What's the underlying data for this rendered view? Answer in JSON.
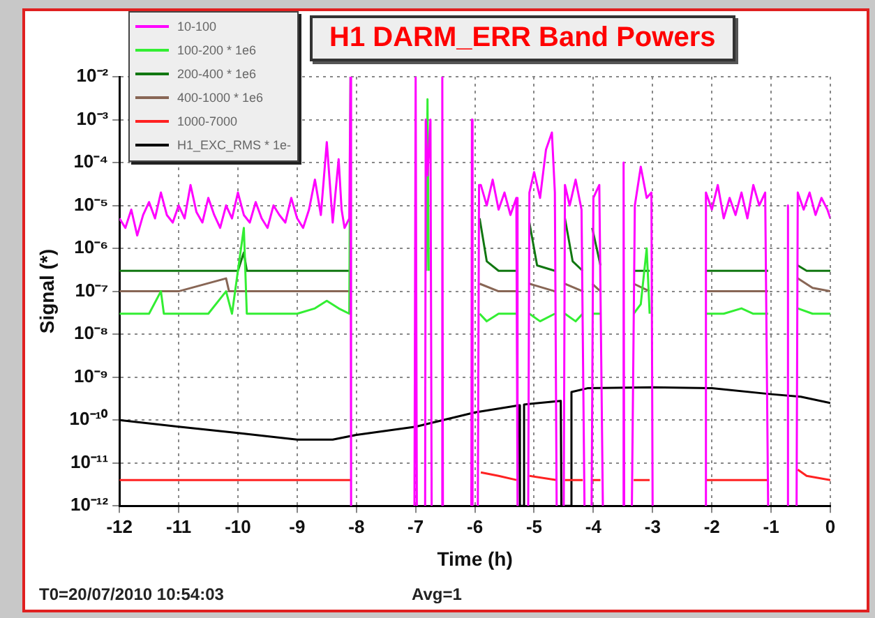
{
  "chart_data": {
    "type": "line",
    "title": "H1 DARM_ERR Band Powers",
    "xlabel": "Time (h)",
    "ylabel": "Signal (*)",
    "annotations": [
      "T0=20/07/2010 10:54:03",
      "Avg=1"
    ],
    "log": "y",
    "grid": true,
    "legend": "top left",
    "marker": "none",
    "line_style": "solid",
    "xlim": [
      -12,
      0
    ],
    "xticks": [
      -12,
      -11,
      -10,
      -9,
      -8,
      -7,
      -6,
      -5,
      -4,
      -3,
      -2,
      -1,
      0
    ],
    "ylim": [
      1e-12,
      0.01
    ],
    "yticks": [
      {
        "value": 1e-12,
        "label": "10⁻¹²"
      },
      {
        "value": 1e-11,
        "label": "10⁻¹¹"
      },
      {
        "value": 1e-10,
        "label": "10⁻¹⁰"
      },
      {
        "value": 1e-09,
        "label": "10⁻⁹"
      },
      {
        "value": 1e-08,
        "label": "10⁻⁸"
      },
      {
        "value": 1e-07,
        "label": "10⁻⁷"
      },
      {
        "value": 1e-06,
        "label": "10⁻⁶"
      },
      {
        "value": 1e-05,
        "label": "10⁻⁵"
      },
      {
        "value": 0.0001,
        "label": "10⁻⁴"
      },
      {
        "value": 0.001,
        "label": "10⁻³"
      },
      {
        "value": 0.01,
        "label": "10⁻²"
      }
    ],
    "series": [
      {
        "name": "10-100",
        "color": "#ff00ff",
        "x": [
          -12,
          -11.9,
          -11.8,
          -11.7,
          -11.6,
          -11.5,
          -11.4,
          -11.3,
          -11.2,
          -11.1,
          -11,
          -10.9,
          -10.8,
          -10.7,
          -10.6,
          -10.5,
          -10.4,
          -10.3,
          -10.2,
          -10.1,
          -10,
          -9.9,
          -9.8,
          -9.7,
          -9.6,
          -9.5,
          -9.4,
          -9.3,
          -9.2,
          -9.1,
          -9,
          -8.9,
          -8.8,
          -8.7,
          -8.6,
          -8.5,
          -8.4,
          -8.3,
          -8.25,
          -8.2,
          -8.12,
          -8.1,
          -8.09,
          -7.5,
          -7.02,
          -7,
          -6.98,
          -6.9,
          -6.84,
          -6.83,
          -6.8,
          -6.75,
          -6.73,
          -6.6,
          -6.56,
          -6.55,
          -6.54,
          -6.3,
          -6.06,
          -6.05,
          -6.04,
          -6,
          -5.95,
          -5.93,
          -5.9,
          -5.8,
          -5.7,
          -5.6,
          -5.5,
          -5.4,
          -5.3,
          -5.28,
          -5.2,
          -5.1,
          -5.08,
          -5,
          -4.9,
          -4.8,
          -4.7,
          -4.65,
          -4.62,
          -4.56,
          -4.5,
          -4.48,
          -4.4,
          -4.3,
          -4.2,
          -4.15,
          -4.1,
          -4.03,
          -4,
          -3.9,
          -3.84,
          -3.7,
          -3.5,
          -3.49,
          -3.48,
          -3.4,
          -3.35,
          -3.3,
          -3.2,
          -3.1,
          -3.02,
          -3,
          -2.5,
          -2.12,
          -2.1,
          -2,
          -1.9,
          -1.8,
          -1.7,
          -1.6,
          -1.5,
          -1.4,
          -1.3,
          -1.2,
          -1.1,
          -1.05,
          -0.9,
          -0.73,
          -0.72,
          -0.71,
          -0.65,
          -0.57,
          -0.55,
          -0.45,
          -0.35,
          -0.25,
          -0.15,
          -0.05,
          0
        ],
        "values": [
          5e-06,
          3e-06,
          8e-06,
          2e-06,
          6e-06,
          1.2e-05,
          5e-06,
          2e-05,
          6e-06,
          4e-06,
          1e-05,
          5e-06,
          3e-05,
          7e-06,
          4e-06,
          1.5e-05,
          6e-06,
          3e-06,
          1e-05,
          5e-06,
          2e-05,
          6e-06,
          4e-06,
          1.2e-05,
          5e-06,
          3e-06,
          1e-05,
          6e-06,
          4e-06,
          1.5e-05,
          5e-06,
          3e-06,
          8e-06,
          4e-05,
          6e-06,
          0.0003,
          4e-06,
          0.00012,
          8e-06,
          3e-06,
          5e-06,
          0.01,
          1e-12,
          null,
          1e-12,
          0.01,
          1e-12,
          null,
          1e-12,
          0.001,
          5e-05,
          0.001,
          1e-12,
          null,
          1e-12,
          0.01,
          1e-12,
          null,
          1e-12,
          0.001,
          1e-12,
          null,
          1e-12,
          3e-05,
          3e-05,
          1e-05,
          4e-05,
          8e-06,
          2e-05,
          6e-06,
          1.5e-05,
          1e-12,
          null,
          1e-12,
          2e-05,
          6e-05,
          1.5e-05,
          0.0002,
          0.0005,
          2e-05,
          1e-12,
          null,
          1e-12,
          3e-05,
          1e-05,
          4e-05,
          8e-06,
          1e-12,
          null,
          1e-12,
          1.5e-05,
          3e-05,
          1e-12,
          null,
          1e-12,
          0.0001,
          1e-12,
          null,
          1e-12,
          1e-05,
          8e-05,
          1.5e-05,
          2e-05,
          1e-12,
          null,
          1e-12,
          2e-05,
          8e-06,
          3e-05,
          5e-06,
          1.5e-05,
          6e-06,
          2e-05,
          5e-06,
          3e-05,
          1e-05,
          2e-05,
          1e-12,
          null,
          1e-12,
          1e-05,
          1e-12,
          null,
          1e-12,
          2e-05,
          8e-06,
          2e-05,
          6e-06,
          1.5e-05,
          8e-06,
          5e-06
        ]
      },
      {
        "name": "100-200 * 1e6",
        "color": "#33ee33",
        "x": [
          -12,
          -11.5,
          -11.3,
          -11.25,
          -11,
          -10.5,
          -10.2,
          -10.1,
          -9.9,
          -9.85,
          -9.8,
          -9.5,
          -9,
          -8.7,
          -8.5,
          -8.3,
          -8.12,
          -8.1,
          -8.09,
          -7.5,
          -6.82,
          -6.8,
          -6.78,
          -6.5,
          -5.92,
          -5.8,
          -5.6,
          -5.3,
          -5.2,
          -5.08,
          -4.9,
          -4.65,
          -4.55,
          -4.48,
          -4.3,
          -4.18,
          -4.1,
          -4.02,
          -3.88,
          -3.8,
          -3.32,
          -3.2,
          -3.1,
          -3.05,
          -2.5,
          -2.1,
          -1.8,
          -1.5,
          -1.3,
          -1.05,
          -0.9,
          -0.55,
          -0.3,
          0
        ],
        "values": [
          3e-08,
          3e-08,
          1e-07,
          3e-08,
          3e-08,
          3e-08,
          1e-07,
          3e-08,
          3e-06,
          3e-08,
          3e-08,
          3e-08,
          3e-08,
          4e-08,
          6e-08,
          4e-08,
          3e-08,
          0.01,
          null,
          null,
          3e-07,
          0.003,
          3e-07,
          null,
          3e-08,
          2e-08,
          3e-08,
          3e-08,
          null,
          3e-08,
          2e-08,
          3e-08,
          null,
          3e-08,
          2e-08,
          3e-08,
          null,
          3e-08,
          3e-08,
          null,
          3e-08,
          5e-08,
          1e-06,
          3e-08,
          null,
          3e-08,
          3e-08,
          4e-08,
          3e-08,
          3e-08,
          null,
          4e-08,
          3e-08,
          3e-08
        ]
      },
      {
        "name": "200-400 * 1e6",
        "color": "#117711",
        "x": [
          -12,
          -10,
          -9.9,
          -9.85,
          -9,
          -8.1,
          -7.5,
          -5.92,
          -5.8,
          -5.6,
          -5.3,
          -5.2,
          -5.08,
          -4.95,
          -4.65,
          -4.55,
          -4.48,
          -4.35,
          -4.18,
          -4.1,
          -4.02,
          -3.88,
          -3.8,
          -3.32,
          -3.05,
          -2.5,
          -2.1,
          -1.05,
          -0.9,
          -0.55,
          -0.4,
          0
        ],
        "values": [
          3e-07,
          3e-07,
          8e-07,
          3e-07,
          3e-07,
          3e-07,
          null,
          5e-06,
          5e-07,
          3e-07,
          3e-07,
          null,
          4e-06,
          4e-07,
          3e-07,
          null,
          5e-06,
          5e-07,
          3e-07,
          null,
          3e-06,
          4e-07,
          null,
          3e-07,
          3e-07,
          null,
          3e-07,
          3e-07,
          null,
          4e-07,
          3e-07,
          3e-07
        ]
      },
      {
        "name": "400-1000 * 1e6",
        "color": "#886655",
        "x": [
          -12,
          -11,
          -10.2,
          -10.15,
          -9,
          -8.1,
          -7.5,
          -5.92,
          -5.6,
          -5.3,
          -5.2,
          -5.08,
          -4.65,
          -4.55,
          -4.48,
          -4.18,
          -4.1,
          -4.02,
          -3.88,
          -3.8,
          -3.32,
          -3.05,
          -2.5,
          -2.1,
          -1.05,
          -0.9,
          -0.55,
          -0.3,
          0
        ],
        "values": [
          1e-07,
          1e-07,
          2e-07,
          1e-07,
          1e-07,
          1e-07,
          null,
          1.5e-07,
          1e-07,
          1e-07,
          null,
          1.5e-07,
          1e-07,
          null,
          1.5e-07,
          1e-07,
          null,
          1.5e-07,
          1e-07,
          null,
          1.5e-07,
          1e-07,
          null,
          1e-07,
          1e-07,
          null,
          2e-07,
          1.2e-07,
          1e-07
        ]
      },
      {
        "name": "1000-7000",
        "color": "#ff2222",
        "x": [
          -12,
          -10,
          -8.1,
          -7.5,
          -5.9,
          -5.6,
          -5.3,
          -5.2,
          -5.08,
          -4.62,
          -4.55,
          -4.48,
          -4.18,
          -4.1,
          -4.02,
          -3.88,
          -3.8,
          -3.32,
          -3.05,
          -2.5,
          -2.1,
          -1.05,
          -0.9,
          -0.55,
          -0.4,
          0
        ],
        "values": [
          4e-12,
          4e-12,
          4e-12,
          null,
          6e-12,
          5e-12,
          4e-12,
          null,
          5e-12,
          4e-12,
          null,
          4e-12,
          4e-12,
          null,
          4e-12,
          4e-12,
          null,
          4e-12,
          4e-12,
          null,
          4e-12,
          4e-12,
          null,
          7e-12,
          5e-12,
          4e-12
        ]
      },
      {
        "name": "H1_EXC_RMS * 1e-",
        "color": "#000000",
        "x": [
          -12,
          -11,
          -10,
          -9,
          -8.4,
          -8,
          -7,
          -6,
          -5.25,
          -5.24,
          -5.18,
          -5.17,
          -4.55,
          -4.54,
          -4.38,
          -4.37,
          -4.1,
          -3,
          -2,
          -1,
          -0.5,
          0
        ],
        "values": [
          1e-10,
          7e-11,
          5e-11,
          3.5e-11,
          3.5e-11,
          4.5e-11,
          7e-11,
          1.5e-10,
          2.2e-10,
          1e-12,
          1e-12,
          2.3e-10,
          2.8e-10,
          1e-12,
          1e-12,
          4.5e-10,
          5.5e-10,
          5.8e-10,
          5.5e-10,
          4e-10,
          3.5e-10,
          2.5e-10
        ]
      }
    ]
  }
}
